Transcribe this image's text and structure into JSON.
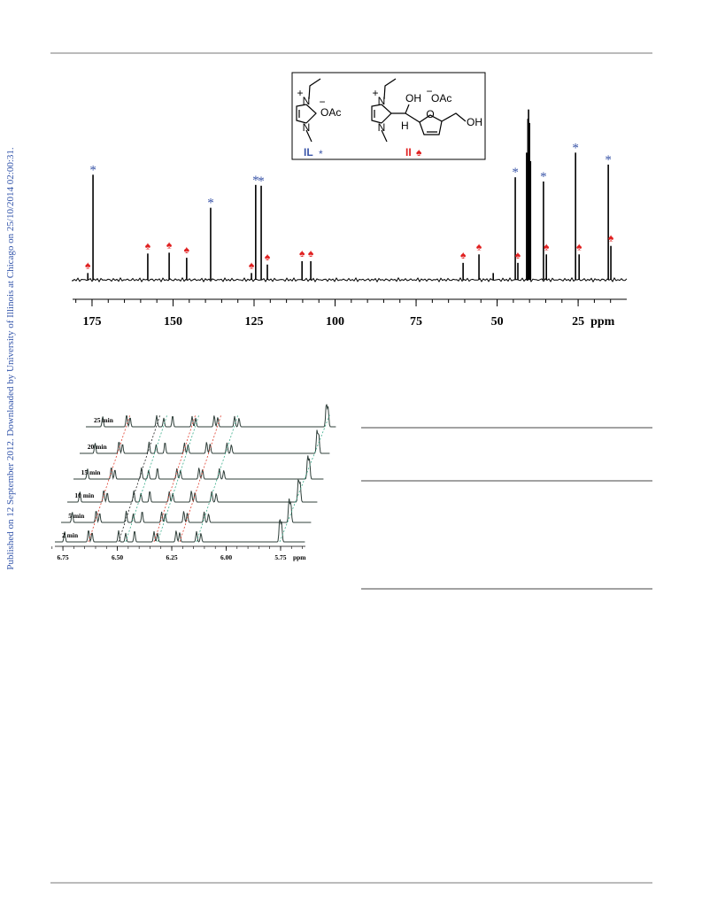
{
  "sidebar": "Published on 12 September 2012. Downloaded by University of Illinois at Chicago on 25/10/2014 02:00:31.",
  "structures": {
    "il": {
      "n1": "N",
      "plus": "+",
      "n3": "N",
      "minus": "−",
      "anion": "OAc",
      "label": "IL",
      "mark": "*"
    },
    "ii": {
      "n1": "N",
      "plus": "+",
      "n3": "N",
      "oh": "OH",
      "h": "H",
      "minus": "−",
      "anion": "OAc",
      "o": "O",
      "oh2": "OH",
      "label": "II",
      "mark": "♠"
    }
  },
  "figure1": {
    "type": "spectrum",
    "xlim": [
      181,
      10
    ],
    "xticks": [
      175,
      150,
      125,
      100,
      75,
      50,
      25
    ],
    "x_unit": "ppm",
    "ylim": [
      0,
      210
    ],
    "mark_colors": {
      "*": "#3a55a8",
      "♠": "#e02020"
    },
    "peaks": [
      {
        "ppm": 176.3,
        "intensity": 8,
        "mark": "♠"
      },
      {
        "ppm": 174.7,
        "intensity": 124,
        "mark": "*"
      },
      {
        "ppm": 157.8,
        "intensity": 31,
        "mark": "♠"
      },
      {
        "ppm": 151.2,
        "intensity": 32,
        "mark": "♠"
      },
      {
        "ppm": 145.8,
        "intensity": 26,
        "mark": "♠"
      },
      {
        "ppm": 138.4,
        "intensity": 85,
        "mark": "*"
      },
      {
        "ppm": 125.8,
        "intensity": 8,
        "mark": "♠"
      },
      {
        "ppm": 124.5,
        "intensity": 112,
        "mark": "*"
      },
      {
        "ppm": 122.8,
        "intensity": 111,
        "mark": "*"
      },
      {
        "ppm": 120.9,
        "intensity": 18,
        "mark": "♠"
      },
      {
        "ppm": 110.2,
        "intensity": 22,
        "mark": "♠"
      },
      {
        "ppm": 107.5,
        "intensity": 22,
        "mark": "♠"
      },
      {
        "ppm": 60.5,
        "intensity": 20,
        "mark": "♠"
      },
      {
        "ppm": 55.6,
        "intensity": 30,
        "mark": "♠"
      },
      {
        "ppm": 51.2,
        "intensity": 8
      },
      {
        "ppm": 44.4,
        "intensity": 121,
        "mark": "*"
      },
      {
        "ppm": 43.6,
        "intensity": 20,
        "mark": "♠"
      },
      {
        "ppm": 40.9,
        "intensity": 150
      },
      {
        "ppm": 40.5,
        "intensity": 190
      },
      {
        "ppm": 40.3,
        "intensity": 201
      },
      {
        "ppm": 40.0,
        "intensity": 185
      },
      {
        "ppm": 39.7,
        "intensity": 140
      },
      {
        "ppm": 35.7,
        "intensity": 116,
        "mark": "*"
      },
      {
        "ppm": 34.8,
        "intensity": 30,
        "mark": "♠"
      },
      {
        "ppm": 25.8,
        "intensity": 150,
        "mark": "*"
      },
      {
        "ppm": 24.7,
        "intensity": 30,
        "mark": "♠"
      },
      {
        "ppm": 15.7,
        "intensity": 136,
        "mark": "*"
      },
      {
        "ppm": 14.9,
        "intensity": 40,
        "mark": "♠"
      }
    ]
  },
  "figure2": {
    "type": "stacked-spectra",
    "xlim": [
      6.787,
      5.636
    ],
    "xticks": [
      6.75,
      {
        "value": 6.5,
        "label": "6.50"
      },
      6.25,
      {
        "value": 6,
        "label": "6.00"
      },
      5.75
    ],
    "x_unit": "ppm",
    "rows": [
      "2 min",
      "5 min",
      "10 min",
      "15 min",
      "20 min",
      "25 min"
    ]
  }
}
